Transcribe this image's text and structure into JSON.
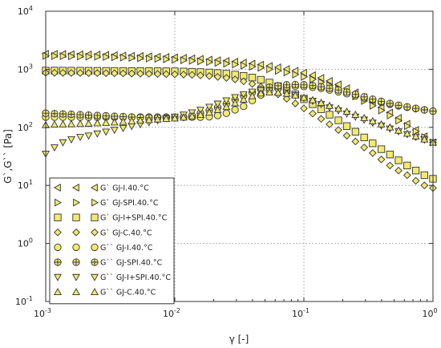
{
  "chart_data": {
    "type": "scatter",
    "xlabel": "γ [-]",
    "ylabel": "G`,G`` [Pa]",
    "xscale": "log",
    "yscale": "log",
    "xlim": [
      0.001,
      1
    ],
    "ylim": [
      0.1,
      10000
    ],
    "grid": true,
    "legend_position": "bottom-left",
    "x_ticks": [
      {
        "base": "10",
        "exp": "-3",
        "value": 0.001
      },
      {
        "base": "10",
        "exp": "-2",
        "value": 0.01
      },
      {
        "base": "10",
        "exp": "-1",
        "value": 0.1
      },
      {
        "base": "10",
        "exp": "0",
        "value": 1
      }
    ],
    "y_ticks": [
      {
        "base": "10",
        "exp": "-1",
        "value": 0.1
      },
      {
        "base": "10",
        "exp": "0",
        "value": 1
      },
      {
        "base": "10",
        "exp": "1",
        "value": 10
      },
      {
        "base": "10",
        "exp": "2",
        "value": 100
      },
      {
        "base": "10",
        "exp": "3",
        "value": 1000
      },
      {
        "base": "10",
        "exp": "4",
        "value": 10000
      }
    ],
    "x": [
      0.001,
      0.00117,
      0.00136,
      0.00158,
      0.00185,
      0.00215,
      0.00251,
      0.00293,
      0.00341,
      0.00398,
      0.00464,
      0.00541,
      0.00631,
      0.00736,
      0.00858,
      0.01,
      0.0117,
      0.0136,
      0.0158,
      0.0185,
      0.0215,
      0.0251,
      0.0293,
      0.0341,
      0.0398,
      0.0464,
      0.0541,
      0.0631,
      0.0736,
      0.0858,
      0.1,
      0.117,
      0.136,
      0.158,
      0.185,
      0.215,
      0.251,
      0.293,
      0.341,
      0.398,
      0.464,
      0.541,
      0.631,
      0.736,
      0.858,
      1
    ],
    "series": [
      {
        "name": "G` GJ-I.40.°C",
        "marker": "triangle-left",
        "color": "#f2ea6d",
        "values": [
          1850,
          1840,
          1830,
          1820,
          1810,
          1800,
          1790,
          1770,
          1750,
          1730,
          1710,
          1690,
          1670,
          1650,
          1630,
          1600,
          1570,
          1540,
          1510,
          1470,
          1430,
          1390,
          1350,
          1300,
          1250,
          1200,
          1140,
          1080,
          1010,
          940,
          870,
          790,
          710,
          630,
          550,
          470,
          400,
          330,
          270,
          220,
          180,
          145,
          115,
          90,
          70,
          55
        ]
      },
      {
        "name": "G` GJ-SPI.40.°C",
        "marker": "triangle-right",
        "color": "#f2ea6d",
        "values": [
          1700,
          1690,
          1680,
          1670,
          1660,
          1650,
          1640,
          1630,
          1610,
          1590,
          1570,
          1550,
          1530,
          1510,
          1490,
          1460,
          1430,
          1400,
          1370,
          1330,
          1290,
          1250,
          1210,
          1160,
          1110,
          1060,
          1000,
          940,
          880,
          810,
          740,
          670,
          600,
          530,
          460,
          400,
          340,
          285,
          235,
          195,
          160,
          130,
          105,
          85,
          68,
          55
        ]
      },
      {
        "name": "G` GJ-I+SPI.40.°C",
        "marker": "square",
        "color": "#f2ea6d",
        "values": [
          950,
          950,
          948,
          946,
          944,
          942,
          940,
          938,
          936,
          934,
          932,
          930,
          928,
          926,
          924,
          922,
          915,
          905,
          895,
          880,
          860,
          840,
          810,
          770,
          720,
          660,
          590,
          510,
          440,
          370,
          305,
          250,
          205,
          165,
          132,
          105,
          84,
          67,
          53,
          42,
          34,
          27,
          22,
          18,
          15,
          13
        ]
      },
      {
        "name": "G` GJ-C.40.°C",
        "marker": "diamond",
        "color": "#f2ea6d",
        "values": [
          870,
          868,
          866,
          864,
          862,
          860,
          858,
          856,
          852,
          848,
          844,
          840,
          835,
          830,
          824,
          818,
          810,
          800,
          785,
          765,
          740,
          710,
          670,
          620,
          560,
          500,
          430,
          370,
          310,
          258,
          212,
          173,
          140,
          113,
          90,
          72,
          57,
          45,
          36,
          28,
          22,
          18,
          15,
          12,
          10,
          9
        ]
      },
      {
        "name": "G`` GJ-I.40.°C",
        "marker": "circle",
        "color": "#f2ea6d",
        "values": [
          150,
          150,
          150,
          150,
          150,
          150,
          150,
          150,
          150,
          150,
          150,
          150,
          150,
          150,
          150,
          150,
          150,
          150,
          150,
          152,
          160,
          175,
          200,
          230,
          290,
          360,
          430,
          470,
          500,
          510,
          505,
          490,
          470,
          440,
          410,
          380,
          350,
          320,
          295,
          270,
          250,
          235,
          222,
          210,
          200,
          190
        ]
      },
      {
        "name": "G`` GJ-SPI.40.°C",
        "marker": "circle-cross",
        "color": "#f2ea6d",
        "values": [
          175,
          172,
          170,
          168,
          165,
          162,
          160,
          158,
          155,
          153,
          150,
          148,
          146,
          145,
          145,
          146,
          150,
          160,
          175,
          195,
          220,
          255,
          300,
          350,
          400,
          450,
          490,
          520,
          540,
          545,
          540,
          525,
          500,
          470,
          440,
          405,
          370,
          335,
          305,
          280,
          258,
          240,
          225,
          212,
          200,
          190
        ]
      },
      {
        "name": "G`` GJ-I+SPI.40.°C",
        "marker": "triangle-down",
        "color": "#f2ea6d",
        "values": [
          35,
          45,
          55,
          62,
          68,
          72,
          78,
          84,
          90,
          97,
          105,
          113,
          122,
          132,
          142,
          152,
          165,
          180,
          200,
          225,
          255,
          290,
          330,
          370,
          410,
          430,
          425,
          410,
          385,
          355,
          320,
          285,
          250,
          220,
          195,
          172,
          152,
          135,
          120,
          107,
          95,
          85,
          76,
          68,
          61,
          55
        ]
      },
      {
        "name": "G`` GJ-C.40.°C",
        "marker": "triangle-up",
        "color": "#f2ea6d",
        "values": [
          110,
          112,
          113,
          114,
          115,
          116,
          118,
          120,
          122,
          125,
          128,
          131,
          134,
          137,
          140,
          143,
          148,
          155,
          165,
          180,
          200,
          225,
          260,
          300,
          345,
          385,
          400,
          395,
          380,
          355,
          325,
          295,
          265,
          235,
          210,
          187,
          165,
          145,
          128,
          113,
          100,
          88,
          78,
          70,
          62,
          55
        ]
      }
    ]
  }
}
